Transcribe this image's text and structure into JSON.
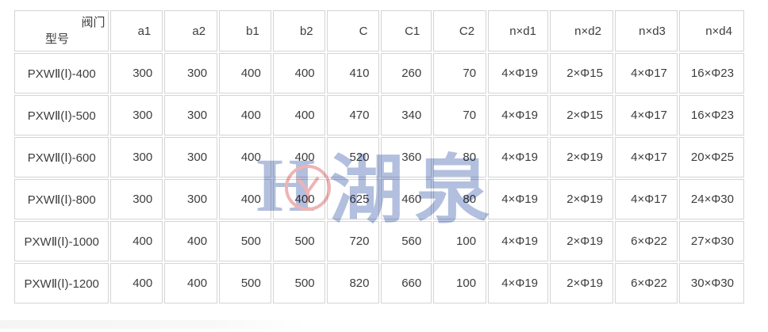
{
  "table": {
    "header": {
      "corner_top": "阀门",
      "corner_bottom": "型号",
      "columns": [
        "a1",
        "a2",
        "b1",
        "b2",
        "C",
        "C1",
        "C2",
        "n×d1",
        "n×d2",
        "n×d3",
        "n×d4"
      ]
    },
    "rows": [
      {
        "model": "PXWⅡ(Ⅰ)-400",
        "values": [
          "300",
          "300",
          "400",
          "400",
          "410",
          "260",
          "70",
          "4×Φ19",
          "2×Φ15",
          "4×Φ17",
          "16×Φ23"
        ]
      },
      {
        "model": "PXWⅡ(Ⅰ)-500",
        "values": [
          "300",
          "300",
          "400",
          "400",
          "470",
          "340",
          "70",
          "4×Φ19",
          "2×Φ15",
          "4×Φ17",
          "16×Φ23"
        ]
      },
      {
        "model": "PXWⅡ(Ⅰ)-600",
        "values": [
          "300",
          "300",
          "400",
          "400",
          "520",
          "360",
          "80",
          "4×Φ19",
          "2×Φ19",
          "4×Φ17",
          "20×Φ25"
        ]
      },
      {
        "model": "PXWⅡ(Ⅰ)-800",
        "values": [
          "300",
          "300",
          "400",
          "400",
          "625",
          "460",
          "80",
          "4×Φ19",
          "2×Φ19",
          "4×Φ17",
          "24×Φ30"
        ]
      },
      {
        "model": "PXWⅡ(Ⅰ)-1000",
        "values": [
          "400",
          "400",
          "500",
          "500",
          "720",
          "560",
          "100",
          "4×Φ19",
          "2×Φ19",
          "6×Φ22",
          "27×Φ30"
        ]
      },
      {
        "model": "PXWⅡ(Ⅰ)-1200",
        "values": [
          "400",
          "400",
          "500",
          "500",
          "820",
          "660",
          "100",
          "4×Φ19",
          "2×Φ19",
          "6×Φ22",
          "30×Φ30"
        ]
      }
    ]
  },
  "watermark": {
    "logo_letter": "H",
    "brand_text": "湖泉",
    "blue_color": "#b2bfde",
    "red_color": "#efb3b3"
  },
  "colors": {
    "border": "#d4d4d4",
    "text": "#3d3d3d",
    "background": "#ffffff"
  }
}
